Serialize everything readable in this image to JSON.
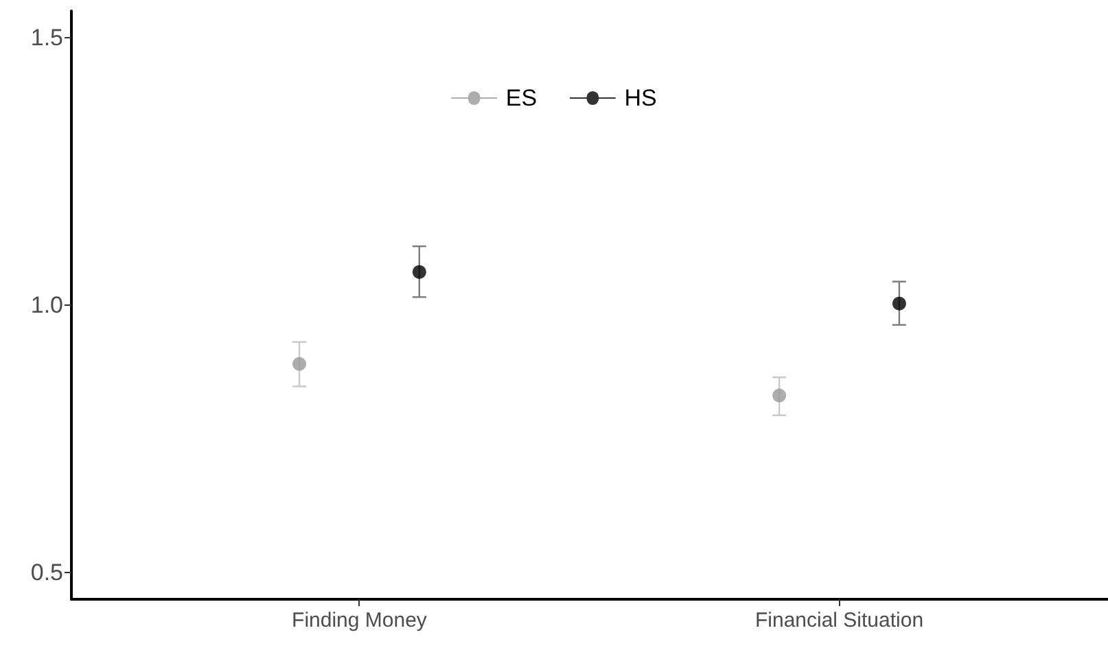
{
  "chart_data": {
    "type": "scatter",
    "categories": [
      "Finding Money",
      "Financial Situation"
    ],
    "series": [
      {
        "name": "ES",
        "color": "#999999",
        "values": [
          0.89,
          0.831
        ],
        "errors": [
          [
            0.848,
            0.931
          ],
          [
            0.794,
            0.865
          ]
        ]
      },
      {
        "name": "HS",
        "color": "#000000",
        "values": [
          1.062,
          1.003
        ],
        "errors": [
          [
            1.015,
            1.11
          ],
          [
            0.963,
            1.044
          ]
        ]
      }
    ],
    "ylim": [
      0.45,
      1.55
    ],
    "yticks": [
      0.5,
      {
        "value": 1,
        "label": "1.0"
      },
      1.5
    ],
    "grid": false,
    "legend": "top",
    "marker": "circle"
  }
}
